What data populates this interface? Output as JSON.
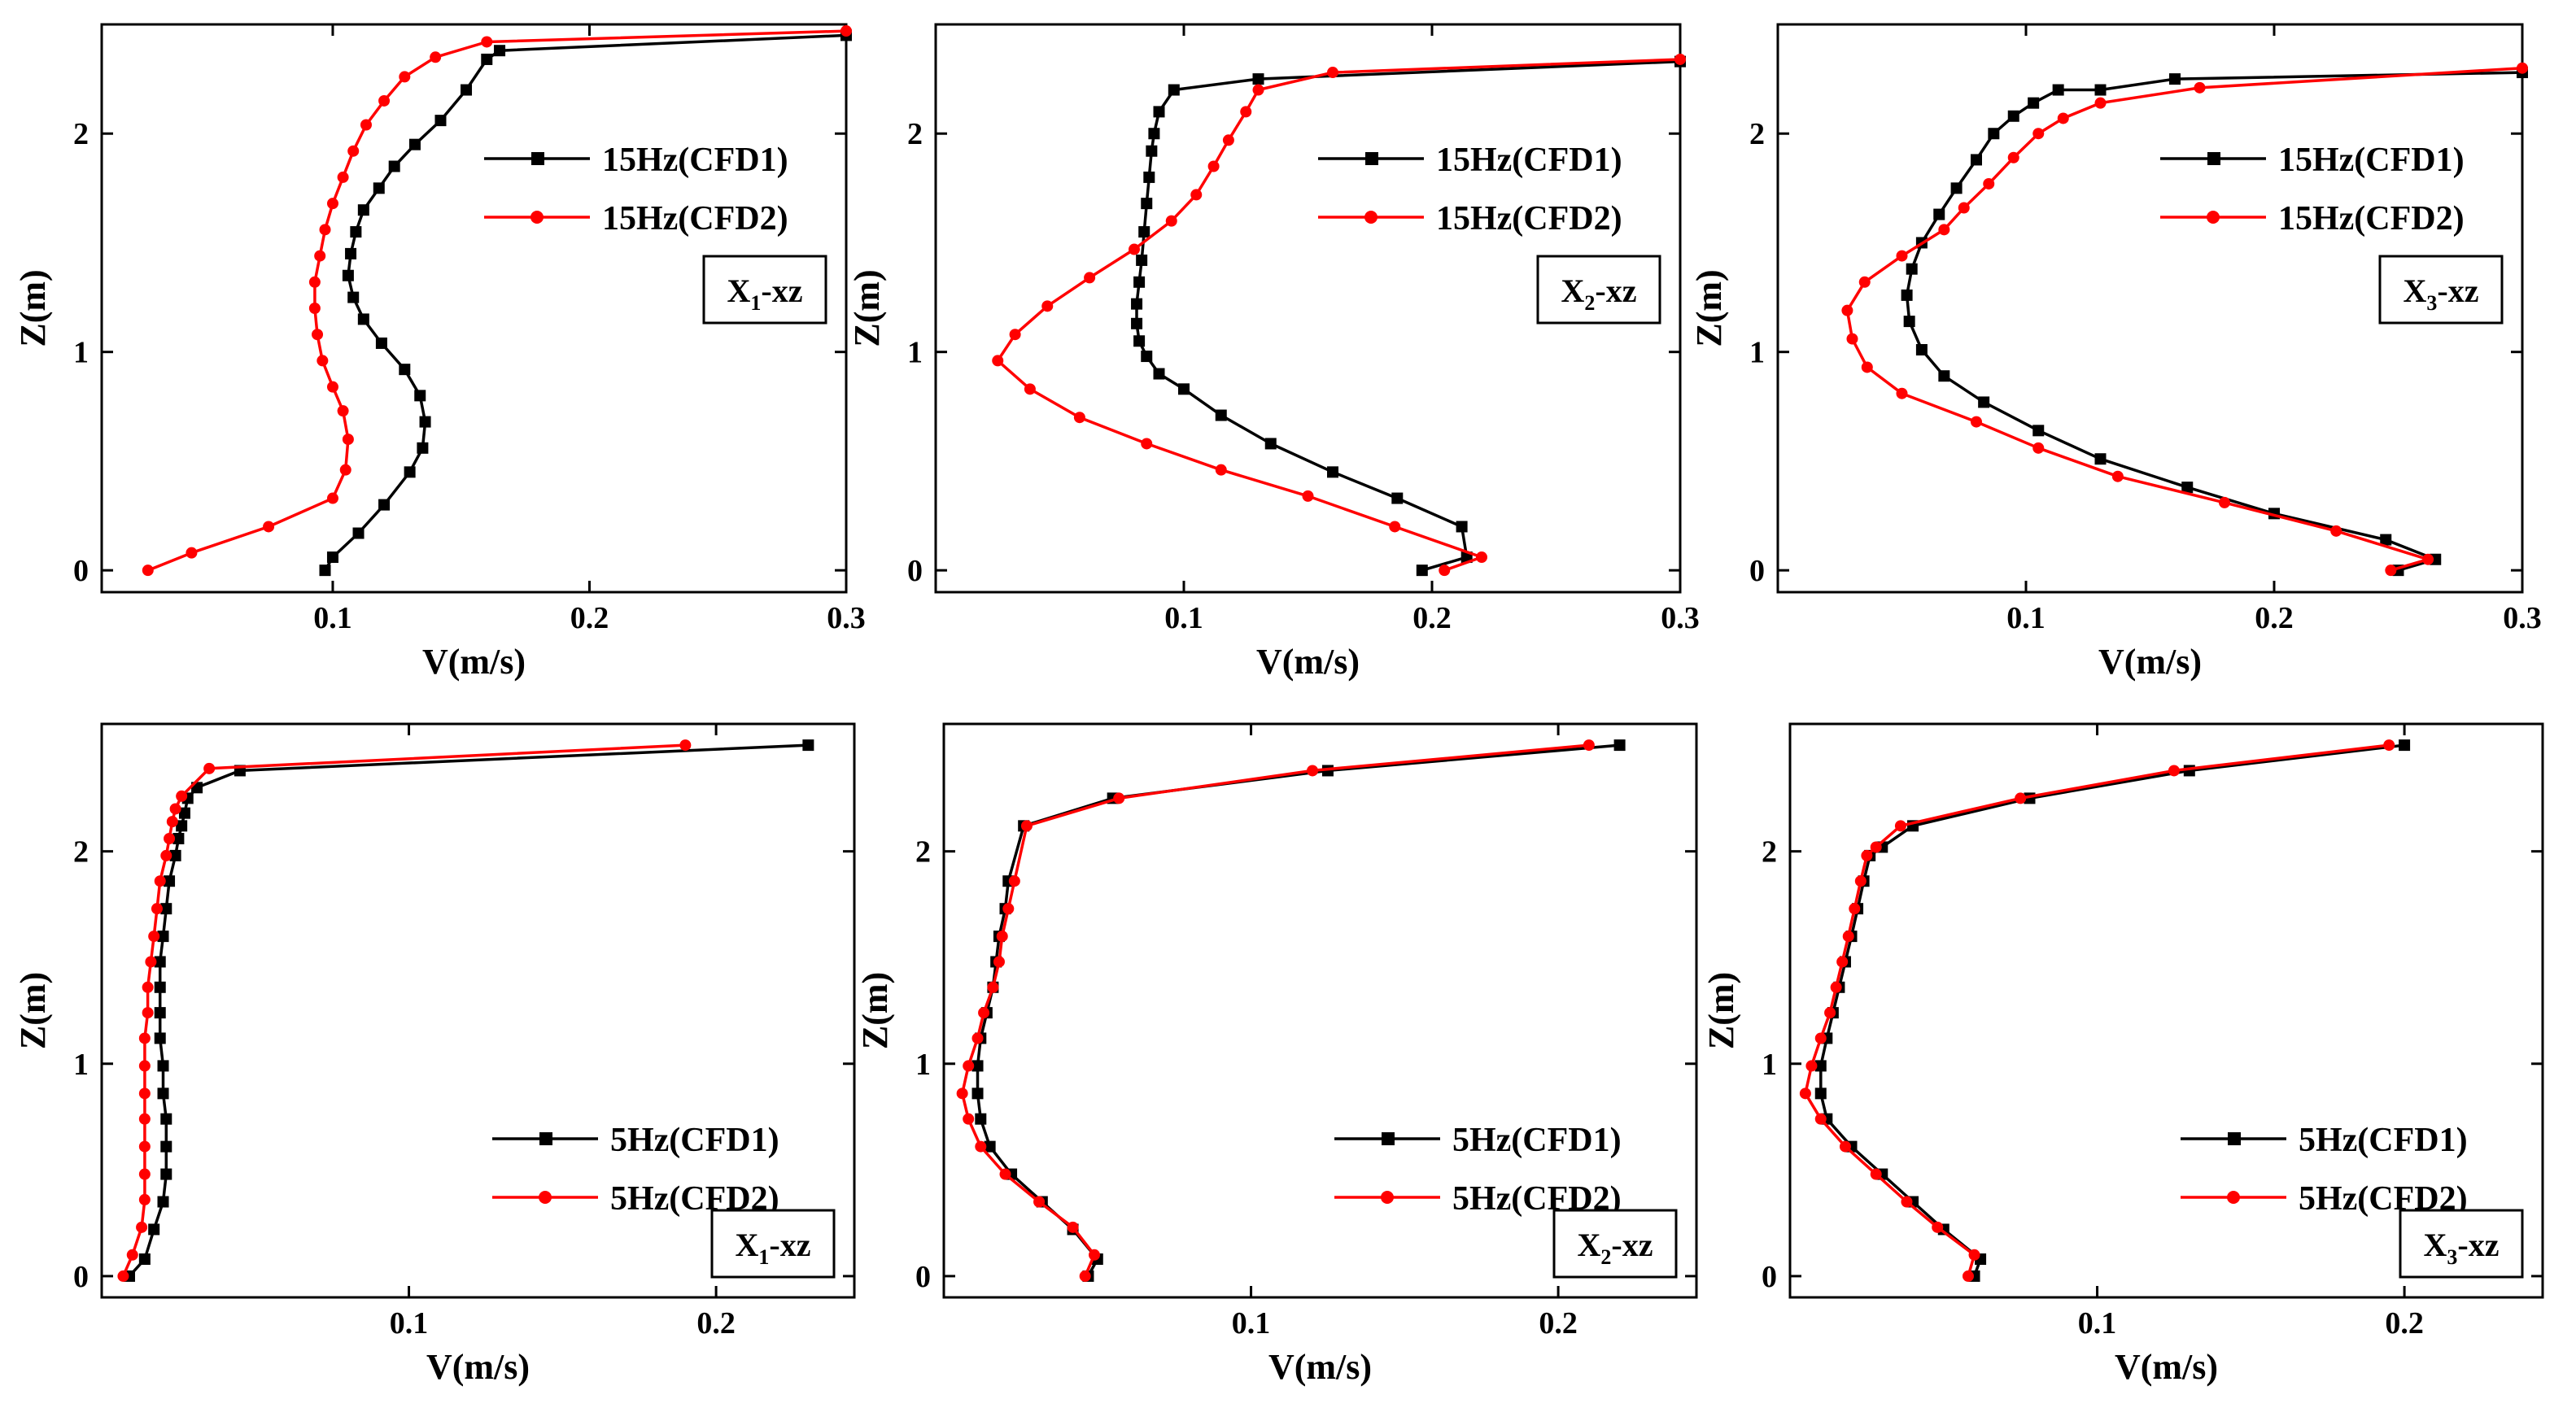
{
  "colors": {
    "cfd1": "#000000",
    "cfd2": "#ff0000"
  },
  "chart_data": [
    {
      "type": "line",
      "xlabel": "V(m/s)",
      "ylabel": "Z(m)",
      "xlim": [
        0.01,
        0.3
      ],
      "ylim": [
        -0.1,
        2.5
      ],
      "xticks": [
        0.1,
        0.2,
        0.3
      ],
      "xticklabels": [
        "0.1",
        "0.2",
        "0.3"
      ],
      "yticks": [
        0,
        1,
        2
      ],
      "yticklabels": [
        "0",
        "1",
        "2"
      ],
      "legend_position": "upper-right",
      "tag": {
        "main": "X",
        "sub": "1",
        "rest": "-xz"
      },
      "series": [
        {
          "name": "15Hz(CFD1)",
          "marker": "square",
          "color": "#000000",
          "x": [
            0.097,
            0.1,
            0.11,
            0.12,
            0.13,
            0.135,
            0.136,
            0.134,
            0.128,
            0.119,
            0.112,
            0.108,
            0.106,
            0.107,
            0.109,
            0.112,
            0.118,
            0.124,
            0.132,
            0.142,
            0.152,
            0.16,
            0.165,
            0.3
          ],
          "y": [
            0,
            0.06,
            0.17,
            0.3,
            0.45,
            0.56,
            0.68,
            0.8,
            0.92,
            1.04,
            1.15,
            1.25,
            1.35,
            1.45,
            1.55,
            1.65,
            1.75,
            1.85,
            1.95,
            2.06,
            2.2,
            2.34,
            2.38,
            2.45
          ]
        },
        {
          "name": "15Hz(CFD2)",
          "marker": "circle",
          "color": "#ff0000",
          "x": [
            0.028,
            0.045,
            0.075,
            0.1,
            0.105,
            0.106,
            0.104,
            0.1,
            0.096,
            0.094,
            0.093,
            0.093,
            0.095,
            0.097,
            0.1,
            0.104,
            0.108,
            0.113,
            0.12,
            0.128,
            0.14,
            0.16,
            0.3
          ],
          "y": [
            0,
            0.08,
            0.2,
            0.33,
            0.46,
            0.6,
            0.73,
            0.84,
            0.96,
            1.08,
            1.2,
            1.32,
            1.44,
            1.56,
            1.68,
            1.8,
            1.92,
            2.04,
            2.15,
            2.26,
            2.35,
            2.42,
            2.47
          ]
        }
      ]
    },
    {
      "type": "line",
      "xlabel": "V(m/s)",
      "ylabel": "Z(m)",
      "xlim": [
        0.0,
        0.3
      ],
      "ylim": [
        -0.1,
        2.5
      ],
      "xticks": [
        0.1,
        0.2,
        0.3
      ],
      "xticklabels": [
        "0.1",
        "0.2",
        "0.3"
      ],
      "yticks": [
        0,
        1,
        2
      ],
      "yticklabels": [
        "0",
        "1",
        "2"
      ],
      "legend_position": "upper-right",
      "tag": {
        "main": "X",
        "sub": "2",
        "rest": "-xz"
      },
      "series": [
        {
          "name": "15Hz(CFD1)",
          "marker": "square",
          "color": "#000000",
          "x": [
            0.196,
            0.214,
            0.212,
            0.186,
            0.16,
            0.135,
            0.115,
            0.1,
            0.09,
            0.085,
            0.082,
            0.081,
            0.081,
            0.082,
            0.083,
            0.084,
            0.085,
            0.086,
            0.087,
            0.088,
            0.09,
            0.096,
            0.13,
            0.3
          ],
          "y": [
            0,
            0.06,
            0.2,
            0.33,
            0.45,
            0.58,
            0.71,
            0.83,
            0.9,
            0.98,
            1.05,
            1.13,
            1.22,
            1.32,
            1.42,
            1.55,
            1.68,
            1.8,
            1.92,
            2.0,
            2.1,
            2.2,
            2.25,
            2.33
          ]
        },
        {
          "name": "15Hz(CFD2)",
          "marker": "circle",
          "color": "#ff0000",
          "x": [
            0.205,
            0.22,
            0.185,
            0.15,
            0.115,
            0.085,
            0.058,
            0.038,
            0.025,
            0.032,
            0.045,
            0.062,
            0.08,
            0.095,
            0.105,
            0.112,
            0.118,
            0.125,
            0.13,
            0.16,
            0.3
          ],
          "y": [
            0,
            0.06,
            0.2,
            0.34,
            0.46,
            0.58,
            0.7,
            0.83,
            0.96,
            1.08,
            1.21,
            1.34,
            1.47,
            1.6,
            1.72,
            1.85,
            1.97,
            2.1,
            2.2,
            2.28,
            2.34
          ]
        }
      ]
    },
    {
      "type": "line",
      "xlabel": "V(m/s)",
      "ylabel": "Z(m)",
      "xlim": [
        0.0,
        0.3
      ],
      "ylim": [
        -0.1,
        2.5
      ],
      "xticks": [
        0.1,
        0.2,
        0.3
      ],
      "xticklabels": [
        "0.1",
        "0.2",
        "0.3"
      ],
      "yticks": [
        0,
        1,
        2
      ],
      "yticklabels": [
        "0",
        "1",
        "2"
      ],
      "legend_position": "upper-right",
      "tag": {
        "main": "X",
        "sub": "3",
        "rest": "-xz"
      },
      "series": [
        {
          "name": "15Hz(CFD1)",
          "marker": "square",
          "color": "#000000",
          "x": [
            0.25,
            0.265,
            0.245,
            0.2,
            0.165,
            0.13,
            0.105,
            0.083,
            0.067,
            0.058,
            0.053,
            0.052,
            0.054,
            0.058,
            0.065,
            0.072,
            0.08,
            0.087,
            0.095,
            0.103,
            0.113,
            0.13,
            0.16,
            0.3
          ],
          "y": [
            0,
            0.05,
            0.14,
            0.26,
            0.38,
            0.51,
            0.64,
            0.77,
            0.89,
            1.01,
            1.14,
            1.26,
            1.38,
            1.5,
            1.63,
            1.75,
            1.88,
            2.0,
            2.08,
            2.14,
            2.2,
            2.2,
            2.25,
            2.28
          ]
        },
        {
          "name": "15Hz(CFD2)",
          "marker": "circle",
          "color": "#ff0000",
          "x": [
            0.247,
            0.262,
            0.225,
            0.18,
            0.137,
            0.105,
            0.08,
            0.05,
            0.036,
            0.03,
            0.028,
            0.035,
            0.05,
            0.067,
            0.075,
            0.085,
            0.095,
            0.105,
            0.115,
            0.13,
            0.17,
            0.3
          ],
          "y": [
            0,
            0.05,
            0.18,
            0.31,
            0.43,
            0.56,
            0.68,
            0.81,
            0.93,
            1.06,
            1.19,
            1.32,
            1.44,
            1.56,
            1.66,
            1.77,
            1.89,
            2.0,
            2.07,
            2.14,
            2.21,
            2.3
          ]
        }
      ]
    },
    {
      "type": "line",
      "xlabel": "V(m/s)",
      "ylabel": "Z(m)",
      "xlim": [
        0.0,
        0.245
      ],
      "ylim": [
        -0.1,
        2.6
      ],
      "xticks": [
        0.1,
        0.2
      ],
      "xticklabels": [
        "0.1",
        "0.2"
      ],
      "yticks": [
        0,
        1,
        2
      ],
      "yticklabels": [
        "0",
        "1",
        "2"
      ],
      "legend_position": "lower-right",
      "tag": {
        "main": "X",
        "sub": "1",
        "rest": "-xz"
      },
      "series": [
        {
          "name": "5Hz(CFD1)",
          "marker": "square",
          "color": "#000000",
          "x": [
            0.009,
            0.014,
            0.017,
            0.02,
            0.021,
            0.021,
            0.021,
            0.02,
            0.02,
            0.019,
            0.019,
            0.019,
            0.019,
            0.02,
            0.021,
            0.022,
            0.024,
            0.025,
            0.026,
            0.027,
            0.028,
            0.031,
            0.045,
            0.23
          ],
          "y": [
            0,
            0.08,
            0.22,
            0.35,
            0.48,
            0.61,
            0.74,
            0.86,
            0.99,
            1.12,
            1.24,
            1.36,
            1.48,
            1.6,
            1.73,
            1.86,
            1.98,
            2.06,
            2.12,
            2.18,
            2.25,
            2.3,
            2.38,
            2.5
          ]
        },
        {
          "name": "5Hz(CFD2)",
          "marker": "circle",
          "color": "#ff0000",
          "x": [
            0.007,
            0.01,
            0.013,
            0.014,
            0.014,
            0.014,
            0.014,
            0.014,
            0.014,
            0.014,
            0.015,
            0.015,
            0.016,
            0.017,
            0.018,
            0.019,
            0.021,
            0.022,
            0.023,
            0.024,
            0.026,
            0.035,
            0.19
          ],
          "y": [
            0,
            0.1,
            0.23,
            0.36,
            0.48,
            0.61,
            0.74,
            0.86,
            0.99,
            1.12,
            1.24,
            1.36,
            1.48,
            1.6,
            1.73,
            1.86,
            1.98,
            2.06,
            2.14,
            2.2,
            2.26,
            2.39,
            2.5
          ]
        }
      ]
    },
    {
      "type": "line",
      "xlabel": "V(m/s)",
      "ylabel": "Z(m)",
      "xlim": [
        0.0,
        0.245
      ],
      "ylim": [
        -0.1,
        2.6
      ],
      "xticks": [
        0.1,
        0.2
      ],
      "xticklabels": [
        "0.1",
        "0.2"
      ],
      "yticks": [
        0,
        1,
        2
      ],
      "yticklabels": [
        "0",
        "1",
        "2"
      ],
      "legend_position": "lower-right",
      "tag": {
        "main": "X",
        "sub": "2",
        "rest": "-xz"
      },
      "series": [
        {
          "name": "5Hz(CFD1)",
          "marker": "square",
          "color": "#000000",
          "x": [
            0.047,
            0.05,
            0.042,
            0.032,
            0.022,
            0.015,
            0.012,
            0.011,
            0.011,
            0.012,
            0.014,
            0.016,
            0.017,
            0.018,
            0.02,
            0.021,
            0.026,
            0.055,
            0.125,
            0.22
          ],
          "y": [
            0,
            0.08,
            0.22,
            0.35,
            0.48,
            0.61,
            0.74,
            0.86,
            0.99,
            1.12,
            1.24,
            1.36,
            1.48,
            1.6,
            1.73,
            1.86,
            2.12,
            2.25,
            2.38,
            2.5
          ]
        },
        {
          "name": "5Hz(CFD2)",
          "marker": "circle",
          "color": "#ff0000",
          "x": [
            0.046,
            0.049,
            0.042,
            0.031,
            0.02,
            0.012,
            0.008,
            0.006,
            0.008,
            0.011,
            0.013,
            0.016,
            0.018,
            0.019,
            0.021,
            0.023,
            0.027,
            0.057,
            0.12,
            0.21
          ],
          "y": [
            0,
            0.1,
            0.23,
            0.35,
            0.48,
            0.61,
            0.74,
            0.86,
            0.99,
            1.12,
            1.24,
            1.36,
            1.48,
            1.6,
            1.73,
            1.86,
            2.12,
            2.25,
            2.38,
            2.5
          ]
        }
      ]
    },
    {
      "type": "line",
      "xlabel": "V(m/s)",
      "ylabel": "Z(m)",
      "xlim": [
        0.0,
        0.245
      ],
      "ylim": [
        -0.1,
        2.6
      ],
      "xticks": [
        0.1,
        0.2
      ],
      "xticklabels": [
        "0.1",
        "0.2"
      ],
      "yticks": [
        0,
        1,
        2
      ],
      "yticklabels": [
        "0",
        "1",
        "2"
      ],
      "legend_position": "lower-right",
      "tag": {
        "main": "X",
        "sub": "3",
        "rest": "-xz"
      },
      "series": [
        {
          "name": "5Hz(CFD1)",
          "marker": "square",
          "color": "#000000",
          "x": [
            0.06,
            0.062,
            0.05,
            0.04,
            0.03,
            0.02,
            0.012,
            0.01,
            0.01,
            0.012,
            0.014,
            0.016,
            0.018,
            0.02,
            0.022,
            0.024,
            0.026,
            0.03,
            0.04,
            0.078,
            0.13,
            0.2
          ],
          "y": [
            0,
            0.08,
            0.22,
            0.35,
            0.48,
            0.61,
            0.74,
            0.86,
            0.99,
            1.12,
            1.24,
            1.36,
            1.48,
            1.6,
            1.73,
            1.86,
            1.98,
            2.02,
            2.12,
            2.25,
            2.38,
            2.5
          ]
        },
        {
          "name": "5Hz(CFD2)",
          "marker": "circle",
          "color": "#ff0000",
          "x": [
            0.058,
            0.06,
            0.048,
            0.038,
            0.028,
            0.018,
            0.01,
            0.005,
            0.007,
            0.01,
            0.013,
            0.015,
            0.017,
            0.019,
            0.021,
            0.023,
            0.025,
            0.028,
            0.036,
            0.075,
            0.125,
            0.195
          ],
          "y": [
            0,
            0.1,
            0.23,
            0.35,
            0.48,
            0.61,
            0.74,
            0.86,
            0.99,
            1.12,
            1.24,
            1.36,
            1.48,
            1.6,
            1.73,
            1.86,
            1.98,
            2.02,
            2.12,
            2.25,
            2.38,
            2.5
          ]
        }
      ]
    }
  ]
}
